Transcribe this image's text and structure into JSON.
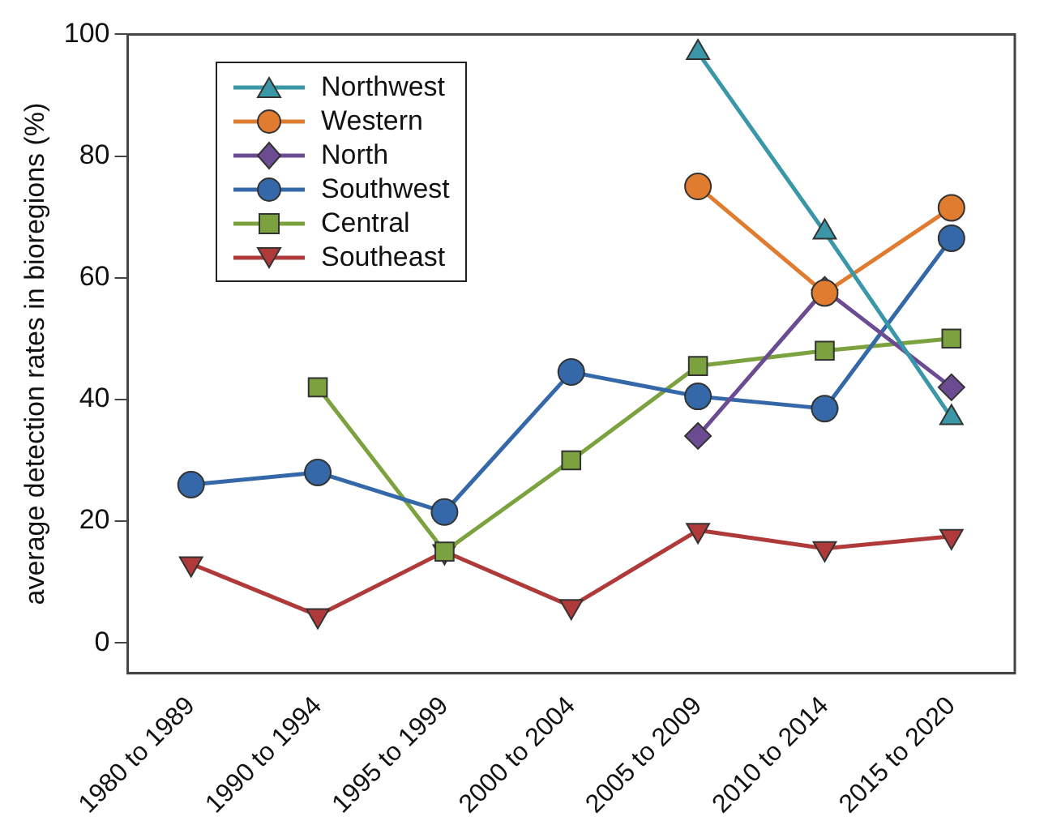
{
  "chart_data": {
    "type": "line",
    "ylabel": "average detection rates in bioregions (%)",
    "categories": [
      "1980 to 1989",
      "1990 to 1994",
      "1995 to 1999",
      "2000 to 2004",
      "2005 to 2009",
      "2010 to 2014",
      "2015 to 2020"
    ],
    "series": [
      {
        "name": "Northwest",
        "color": "#3a97a8",
        "marker": "triangle",
        "values": [
          null,
          null,
          null,
          null,
          97,
          67.5,
          37
        ]
      },
      {
        "name": "Western",
        "color": "#e07c30",
        "marker": "circle",
        "values": [
          null,
          null,
          null,
          null,
          75,
          57.5,
          71.5
        ]
      },
      {
        "name": "North",
        "color": "#6b4c93",
        "marker": "diamond",
        "values": [
          null,
          null,
          null,
          null,
          34,
          58,
          42
        ]
      },
      {
        "name": "Southwest",
        "color": "#3468a8",
        "marker": "circle",
        "values": [
          26,
          28,
          21.5,
          44.5,
          40.5,
          38.5,
          66.5
        ]
      },
      {
        "name": "Central",
        "color": "#7ba23f",
        "marker": "square",
        "values": [
          null,
          42,
          15,
          30,
          45.5,
          48,
          50
        ]
      },
      {
        "name": "Southeast",
        "color": "#b03a3a",
        "marker": "triangle-down",
        "values": [
          13,
          4.5,
          15,
          6,
          18.5,
          15.5,
          17.5
        ]
      }
    ],
    "ylim": [
      -5,
      100
    ],
    "yticks": [
      0,
      20,
      40,
      60,
      80,
      100
    ],
    "grid": false,
    "legend": "top left"
  }
}
